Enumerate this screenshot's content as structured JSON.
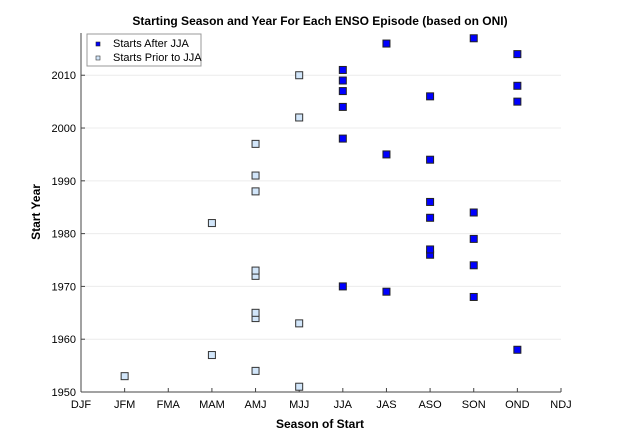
{
  "chart_data": {
    "type": "scatter",
    "title": "Starting Season and Year For Each ENSO Episode (based on ONI)",
    "xlabel": "Season of Start",
    "ylabel": "Start Year",
    "categories": [
      "DJF",
      "JFM",
      "FMA",
      "MAM",
      "AMJ",
      "MJJ",
      "JJA",
      "JAS",
      "ASO",
      "SON",
      "OND",
      "NDJ"
    ],
    "yticks": [
      1950,
      1960,
      1970,
      1980,
      1990,
      2000,
      2010
    ],
    "ylim": [
      1950,
      2018
    ],
    "grid": "horizontal",
    "legend_position": "top-left",
    "series": [
      {
        "name": "Starts After JJA",
        "color": "#0000ff",
        "edge": "#222222",
        "points": [
          [
            "JJA",
            1970
          ],
          [
            "JJA",
            1998
          ],
          [
            "JJA",
            2004
          ],
          [
            "JJA",
            2007
          ],
          [
            "JJA",
            2009
          ],
          [
            "JJA",
            2011
          ],
          [
            "JAS",
            1969
          ],
          [
            "JAS",
            1995
          ],
          [
            "JAS",
            2016
          ],
          [
            "ASO",
            1976
          ],
          [
            "ASO",
            1977
          ],
          [
            "ASO",
            1983
          ],
          [
            "ASO",
            1986
          ],
          [
            "ASO",
            1994
          ],
          [
            "ASO",
            2006
          ],
          [
            "SON",
            1968
          ],
          [
            "SON",
            1974
          ],
          [
            "SON",
            1979
          ],
          [
            "SON",
            1984
          ],
          [
            "SON",
            2017
          ],
          [
            "OND",
            1958
          ],
          [
            "OND",
            2005
          ],
          [
            "OND",
            2008
          ],
          [
            "OND",
            2014
          ]
        ]
      },
      {
        "name": "Starts Prior to JJA",
        "color": "#d2e6fa",
        "edge": "#333333",
        "points": [
          [
            "JFM",
            1953
          ],
          [
            "MAM",
            1957
          ],
          [
            "MAM",
            1982
          ],
          [
            "AMJ",
            1954
          ],
          [
            "AMJ",
            1964
          ],
          [
            "AMJ",
            1965
          ],
          [
            "AMJ",
            1972
          ],
          [
            "AMJ",
            1973
          ],
          [
            "AMJ",
            1988
          ],
          [
            "AMJ",
            1991
          ],
          [
            "AMJ",
            1997
          ],
          [
            "MJJ",
            1951
          ],
          [
            "MJJ",
            1963
          ],
          [
            "MJJ",
            2002
          ],
          [
            "MJJ",
            2010
          ]
        ]
      }
    ]
  }
}
